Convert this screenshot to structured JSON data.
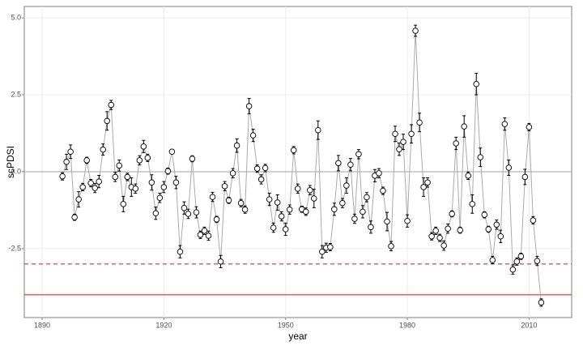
{
  "chart_data": {
    "type": "line",
    "x_label": "year",
    "y_label": "scPDSI",
    "x": [
      1895,
      1896,
      1897,
      1898,
      1899,
      1900,
      1901,
      1902,
      1903,
      1904,
      1905,
      1906,
      1907,
      1908,
      1909,
      1910,
      1911,
      1912,
      1913,
      1914,
      1915,
      1916,
      1917,
      1918,
      1919,
      1920,
      1921,
      1922,
      1923,
      1924,
      1925,
      1926,
      1927,
      1928,
      1929,
      1930,
      1931,
      1932,
      1933,
      1934,
      1935,
      1936,
      1937,
      1938,
      1939,
      1940,
      1941,
      1942,
      1943,
      1944,
      1945,
      1946,
      1947,
      1948,
      1949,
      1950,
      1951,
      1952,
      1953,
      1954,
      1955,
      1956,
      1957,
      1958,
      1959,
      1960,
      1961,
      1962,
      1963,
      1964,
      1965,
      1966,
      1967,
      1968,
      1969,
      1970,
      1971,
      1972,
      1973,
      1974,
      1975,
      1976,
      1977,
      1978,
      1979,
      1980,
      1981,
      1982,
      1983,
      1984,
      1985,
      1986,
      1987,
      1988,
      1989,
      1990,
      1991,
      1992,
      1993,
      1994,
      1995,
      1996,
      1997,
      1998,
      1999,
      2000,
      2001,
      2002,
      2003,
      2004,
      2005,
      2006,
      2007,
      2008,
      2009,
      2010,
      2011,
      2012,
      2013
    ],
    "values": [
      -0.15,
      0.32,
      0.65,
      -1.48,
      -0.9,
      -0.5,
      0.37,
      -0.37,
      -0.53,
      -0.32,
      0.72,
      1.65,
      2.17,
      -0.17,
      0.2,
      -1.05,
      -0.17,
      -0.5,
      -0.55,
      0.37,
      0.82,
      0.45,
      -0.35,
      -1.35,
      -0.85,
      -0.5,
      0.02,
      0.65,
      -0.35,
      -2.6,
      -1.18,
      -1.37,
      0.42,
      -1.32,
      -2.05,
      -1.92,
      -2.08,
      -0.82,
      -1.55,
      -2.92,
      -0.47,
      -0.93,
      -0.05,
      0.85,
      -1.02,
      -1.23,
      2.13,
      1.18,
      0.1,
      -0.25,
      0.12,
      -0.9,
      -1.82,
      -1.0,
      -1.45,
      -1.87,
      -1.23,
      0.7,
      -0.55,
      -1.22,
      -1.3,
      -0.6,
      -0.87,
      1.35,
      -2.6,
      -2.47,
      -2.45,
      -1.22,
      0.28,
      -1.02,
      -0.45,
      0.23,
      -1.53,
      0.57,
      -1.3,
      -0.83,
      -1.8,
      -0.13,
      -0.05,
      -0.62,
      -1.62,
      -2.42,
      1.23,
      0.73,
      0.97,
      -1.6,
      1.23,
      4.58,
      1.6,
      -0.5,
      -0.35,
      -2.1,
      -1.92,
      -2.15,
      -2.4,
      -1.85,
      -1.37,
      0.92,
      -1.9,
      1.47,
      -0.13,
      -1.05,
      2.85,
      0.47,
      -1.4,
      -1.87,
      -2.87,
      -1.72,
      -2.1,
      1.55,
      0.13,
      -3.18,
      -2.92,
      -2.75,
      -0.17,
      1.45,
      -1.58,
      -2.9,
      -4.25
    ],
    "errors": [
      0.12,
      0.25,
      0.22,
      0.1,
      0.25,
      0.12,
      0.1,
      0.12,
      0.15,
      0.2,
      0.18,
      0.3,
      0.15,
      0.15,
      0.18,
      0.25,
      0.12,
      0.3,
      0.15,
      0.15,
      0.2,
      0.12,
      0.25,
      0.2,
      0.15,
      0.18,
      0.1,
      0.05,
      0.2,
      0.2,
      0.2,
      0.15,
      0.1,
      0.18,
      0.12,
      0.12,
      0.15,
      0.15,
      0.1,
      0.2,
      0.15,
      0.1,
      0.15,
      0.22,
      0.12,
      0.12,
      0.25,
      0.2,
      0.12,
      0.15,
      0.12,
      0.2,
      0.15,
      0.25,
      0.15,
      0.2,
      0.15,
      0.12,
      0.15,
      0.1,
      0.12,
      0.15,
      0.3,
      0.3,
      0.2,
      0.15,
      0.12,
      0.2,
      0.25,
      0.15,
      0.25,
      0.2,
      0.15,
      0.15,
      0.2,
      0.15,
      0.2,
      0.2,
      0.15,
      0.12,
      0.3,
      0.15,
      0.25,
      0.2,
      0.25,
      0.2,
      0.3,
      0.18,
      0.3,
      0.3,
      0.15,
      0.12,
      0.12,
      0.12,
      0.15,
      0.15,
      0.1,
      0.2,
      0.1,
      0.35,
      0.12,
      0.3,
      0.35,
      0.3,
      0.1,
      0.1,
      0.12,
      0.15,
      0.2,
      0.2,
      0.25,
      0.15,
      0.12,
      0.1,
      0.25,
      0.12,
      0.12,
      0.15,
      0.12
    ],
    "line_color": "#aaaaaa",
    "point_fill": "#ffffff",
    "point_stroke": "#000000",
    "hlines": [
      {
        "value": 0,
        "color": "#b3b3b3",
        "style": "solid"
      },
      {
        "value": -3,
        "color": "#e0413f",
        "style": "dashed"
      },
      {
        "value": -4,
        "color": "#e0413f",
        "style": "solid"
      }
    ],
    "xlim": [
      1885.6,
      2020.5
    ],
    "ylim": [
      -4.74,
      5.37
    ],
    "xticks": [
      1890,
      1920,
      1950,
      1980,
      2010
    ],
    "yticks": [
      {
        "value": 5,
        "label": "5.0"
      },
      2.5,
      {
        "value": 0,
        "label": "0.0"
      },
      -2.5
    ],
    "grid": true
  }
}
